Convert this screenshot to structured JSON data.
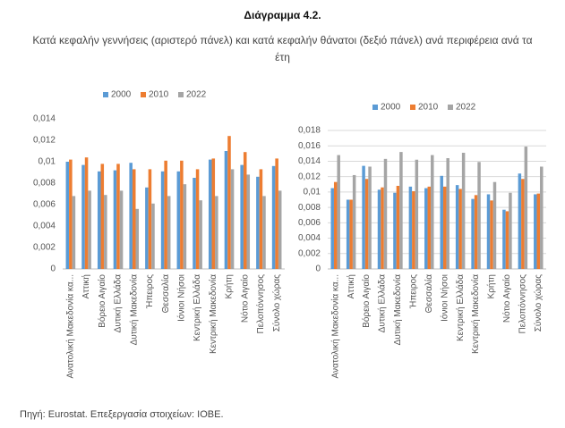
{
  "title": "Διάγραμμα 4.2.",
  "subtitle": "Κατά κεφαλήν γεννήσεις (αριστερό πάνελ) και κατά κεφαλήν θάνατοι (δεξιό πάνελ) ανά περιφέρεια ανά τα έτη",
  "source": "Πηγή: Eurostat. Επεξεργασία στοιχείων: ΙΟΒΕ.",
  "chart_data": [
    {
      "type": "bar",
      "grid": false,
      "categories": [
        "Ανατολική Μακεδονία κα...",
        "Αττική",
        "Βόρειο Αιγαίο",
        "Δυτική Ελλάδα",
        "Δυτική Μακεδονία",
        "Ήπειρος",
        "Θεσσαλία",
        "Ιόνιοι Νήσοι",
        "Κεντρική Ελλάδα",
        "Κεντρική Μακεδονία",
        "Κρήτη",
        "Νότιο Αιγαίο",
        "Πελοπόννησος",
        "Σύνολο χώρας"
      ],
      "series": [
        {
          "name": "2000",
          "color": "#5b9bd5",
          "values": [
            0.01,
            0.0097,
            0.0091,
            0.0092,
            0.0099,
            0.0076,
            0.0091,
            0.0091,
            0.0085,
            0.0102,
            0.011,
            0.0097,
            0.0086,
            0.0096
          ]
        },
        {
          "name": "2010",
          "color": "#ed7d31",
          "values": [
            0.0102,
            0.0104,
            0.0098,
            0.0098,
            0.0093,
            0.0093,
            0.0101,
            0.0101,
            0.0093,
            0.0103,
            0.0124,
            0.0109,
            0.0093,
            0.0103
          ]
        },
        {
          "name": "2022",
          "color": "#a5a5a5",
          "values": [
            0.0068,
            0.0073,
            0.0069,
            0.0073,
            0.0056,
            0.0061,
            0.0068,
            0.0079,
            0.0064,
            0.0068,
            0.0093,
            0.0088,
            0.0068,
            0.0073
          ]
        }
      ],
      "ylim": [
        0,
        0.014
      ],
      "yticks": [
        0,
        {
          "value": 0.002,
          "label": "0,002"
        },
        {
          "value": 0.004,
          "label": "0,004"
        },
        {
          "value": 0.006,
          "label": "0,006"
        },
        {
          "value": 0.008,
          "label": "0,008"
        },
        {
          "value": 0.01,
          "label": "0,01"
        },
        {
          "value": 0.012,
          "label": "0,012"
        },
        {
          "value": 0.014,
          "label": "0,014"
        }
      ]
    },
    {
      "type": "bar",
      "grid": true,
      "categories": [
        "Ανατολική Μακεδονία κα...",
        "Αττική",
        "Βόρειο Αιγαίο",
        "Δυτική Ελλάδα",
        "Δυτική Μακεδονία",
        "Ήπειρος",
        "Θεσσαλία",
        "Ιόνιοι Νήσοι",
        "Κεντρική Ελλάδα",
        "Κεντρική Μακεδονία",
        "Κρήτη",
        "Νότιο Αιγαίο",
        "Πελοπόννησος",
        "Σύνολο χώρας"
      ],
      "series": [
        {
          "name": "2000",
          "color": "#5b9bd5",
          "values": [
            0.0105,
            0.009,
            0.0134,
            0.0103,
            0.0099,
            0.0107,
            0.0105,
            0.0121,
            0.0109,
            0.0091,
            0.0097,
            0.0077,
            0.0124,
            0.0097
          ]
        },
        {
          "name": "2010",
          "color": "#ed7d31",
          "values": [
            0.0113,
            0.009,
            0.0117,
            0.0106,
            0.0108,
            0.0101,
            0.0107,
            0.0107,
            0.0104,
            0.0096,
            0.0089,
            0.0075,
            0.0117,
            0.0098
          ]
        },
        {
          "name": "2022",
          "color": "#a5a5a5",
          "values": [
            0.0148,
            0.0122,
            0.0133,
            0.0143,
            0.0152,
            0.0142,
            0.0148,
            0.0144,
            0.0151,
            0.0139,
            0.0113,
            0.0099,
            0.0159,
            0.0133
          ]
        }
      ],
      "ylim": [
        0,
        0.018
      ],
      "yticks": [
        0,
        {
          "value": 0.002,
          "label": "0,002"
        },
        {
          "value": 0.004,
          "label": "0,004"
        },
        {
          "value": 0.006,
          "label": "0,006"
        },
        {
          "value": 0.008,
          "label": "0,008"
        },
        {
          "value": 0.01,
          "label": "0,01"
        },
        {
          "value": 0.012,
          "label": "0,012"
        },
        {
          "value": 0.014,
          "label": "0,014"
        },
        {
          "value": 0.016,
          "label": "0,016"
        },
        {
          "value": 0.018,
          "label": "0,018"
        }
      ]
    }
  ]
}
